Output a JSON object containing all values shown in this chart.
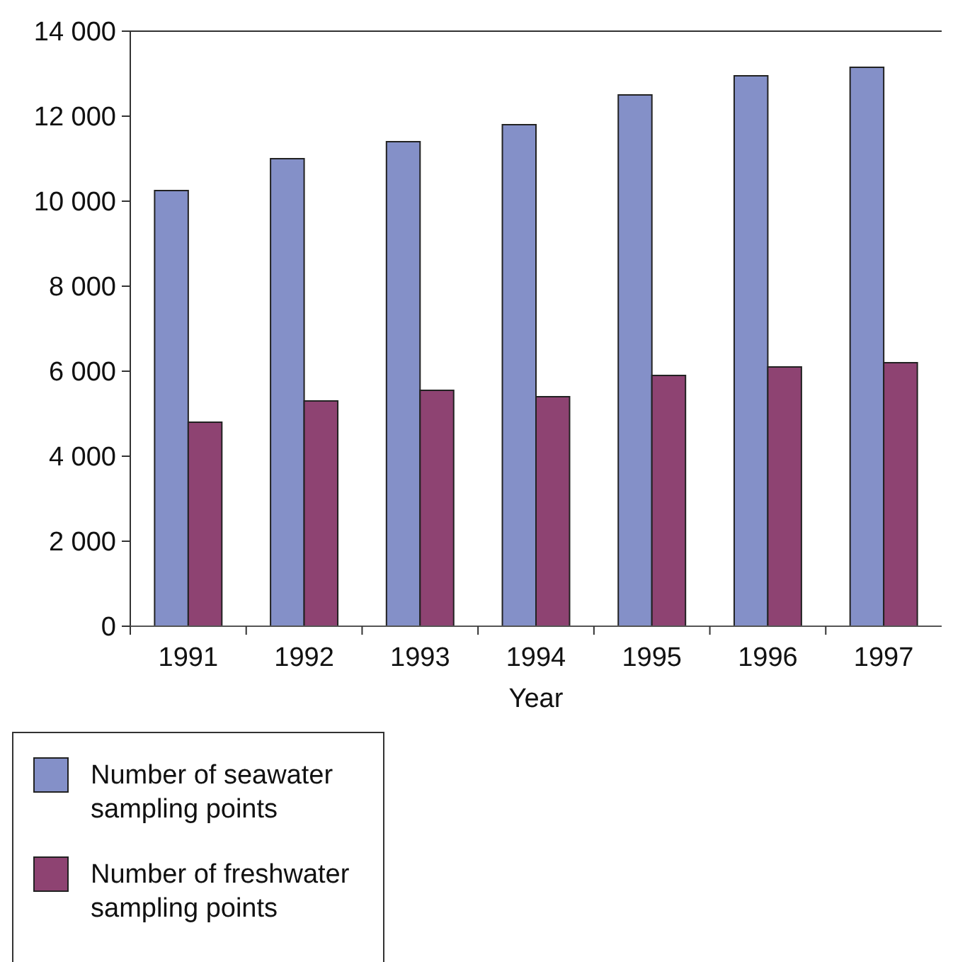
{
  "chart_data": {
    "type": "bar",
    "xlabel": "Year",
    "categories": [
      "1991",
      "1992",
      "1993",
      "1994",
      "1995",
      "1996",
      "1997"
    ],
    "series": [
      {
        "name": "Number of seawater sampling points",
        "color": "#8490c8",
        "values": [
          10250,
          11000,
          11400,
          11800,
          12500,
          12950,
          13150
        ]
      },
      {
        "name": "Number of freshwater sampling points",
        "color": "#8e4372",
        "values": [
          4800,
          5300,
          5550,
          5400,
          5900,
          6100,
          6200
        ]
      }
    ],
    "ylim": [
      0,
      14000
    ],
    "yticks": [
      {
        "value": 0,
        "label": "0"
      },
      {
        "value": 2000,
        "label": "2 000"
      },
      {
        "value": 4000,
        "label": "4 000"
      },
      {
        "value": 6000,
        "label": "6 000"
      },
      {
        "value": 8000,
        "label": "8 000"
      },
      {
        "value": 10000,
        "label": "10 000"
      },
      {
        "value": 12000,
        "label": "12 000"
      },
      {
        "value": 14000,
        "label": "14 000"
      }
    ],
    "grid": false,
    "legend": "bottom left"
  }
}
